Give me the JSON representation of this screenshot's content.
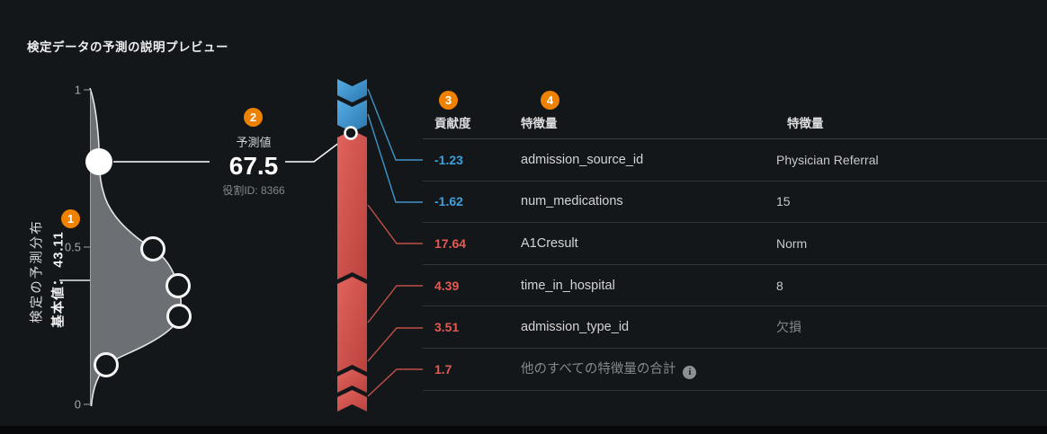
{
  "title": "検定データの予測の説明プレビュー",
  "badges": {
    "distribution": "1",
    "prediction": "2",
    "contribution": "3",
    "feature": "4"
  },
  "distribution": {
    "axis_max": "1",
    "axis_mid": "0.5",
    "axis_min": "0",
    "axis_title": "検定の予測分布",
    "base_value_label": "基本値： 43.11"
  },
  "prediction": {
    "label": "予測値",
    "value": "67.5",
    "row_id": "役割ID: 8366"
  },
  "table": {
    "headers": {
      "contribution": "貢献度",
      "feature": "特徴量",
      "feature_value": "特徴量"
    },
    "rows": [
      {
        "contribution": "-1.23",
        "direction": "negative",
        "feature": "admission_source_id",
        "value": "Physician Referral"
      },
      {
        "contribution": "-1.62",
        "direction": "negative",
        "feature": "num_medications",
        "value": "15"
      },
      {
        "contribution": "17.64",
        "direction": "positive",
        "feature": "A1Cresult",
        "value": "Norm"
      },
      {
        "contribution": "4.39",
        "direction": "positive",
        "feature": "time_in_hospital",
        "value": "8"
      },
      {
        "contribution": "3.51",
        "direction": "positive",
        "feature": "admission_type_id",
        "value": "欠損",
        "value_dim": true
      },
      {
        "contribution": "1.7",
        "direction": "positive",
        "feature": "他のすべての特徴量の合計",
        "value": "",
        "feature_dim": true,
        "info": true
      }
    ]
  },
  "colors": {
    "accent_orange": "#EF8100",
    "negative_blue": "#3FA0DC",
    "positive_red": "#E25A52",
    "background": "#14171A"
  }
}
